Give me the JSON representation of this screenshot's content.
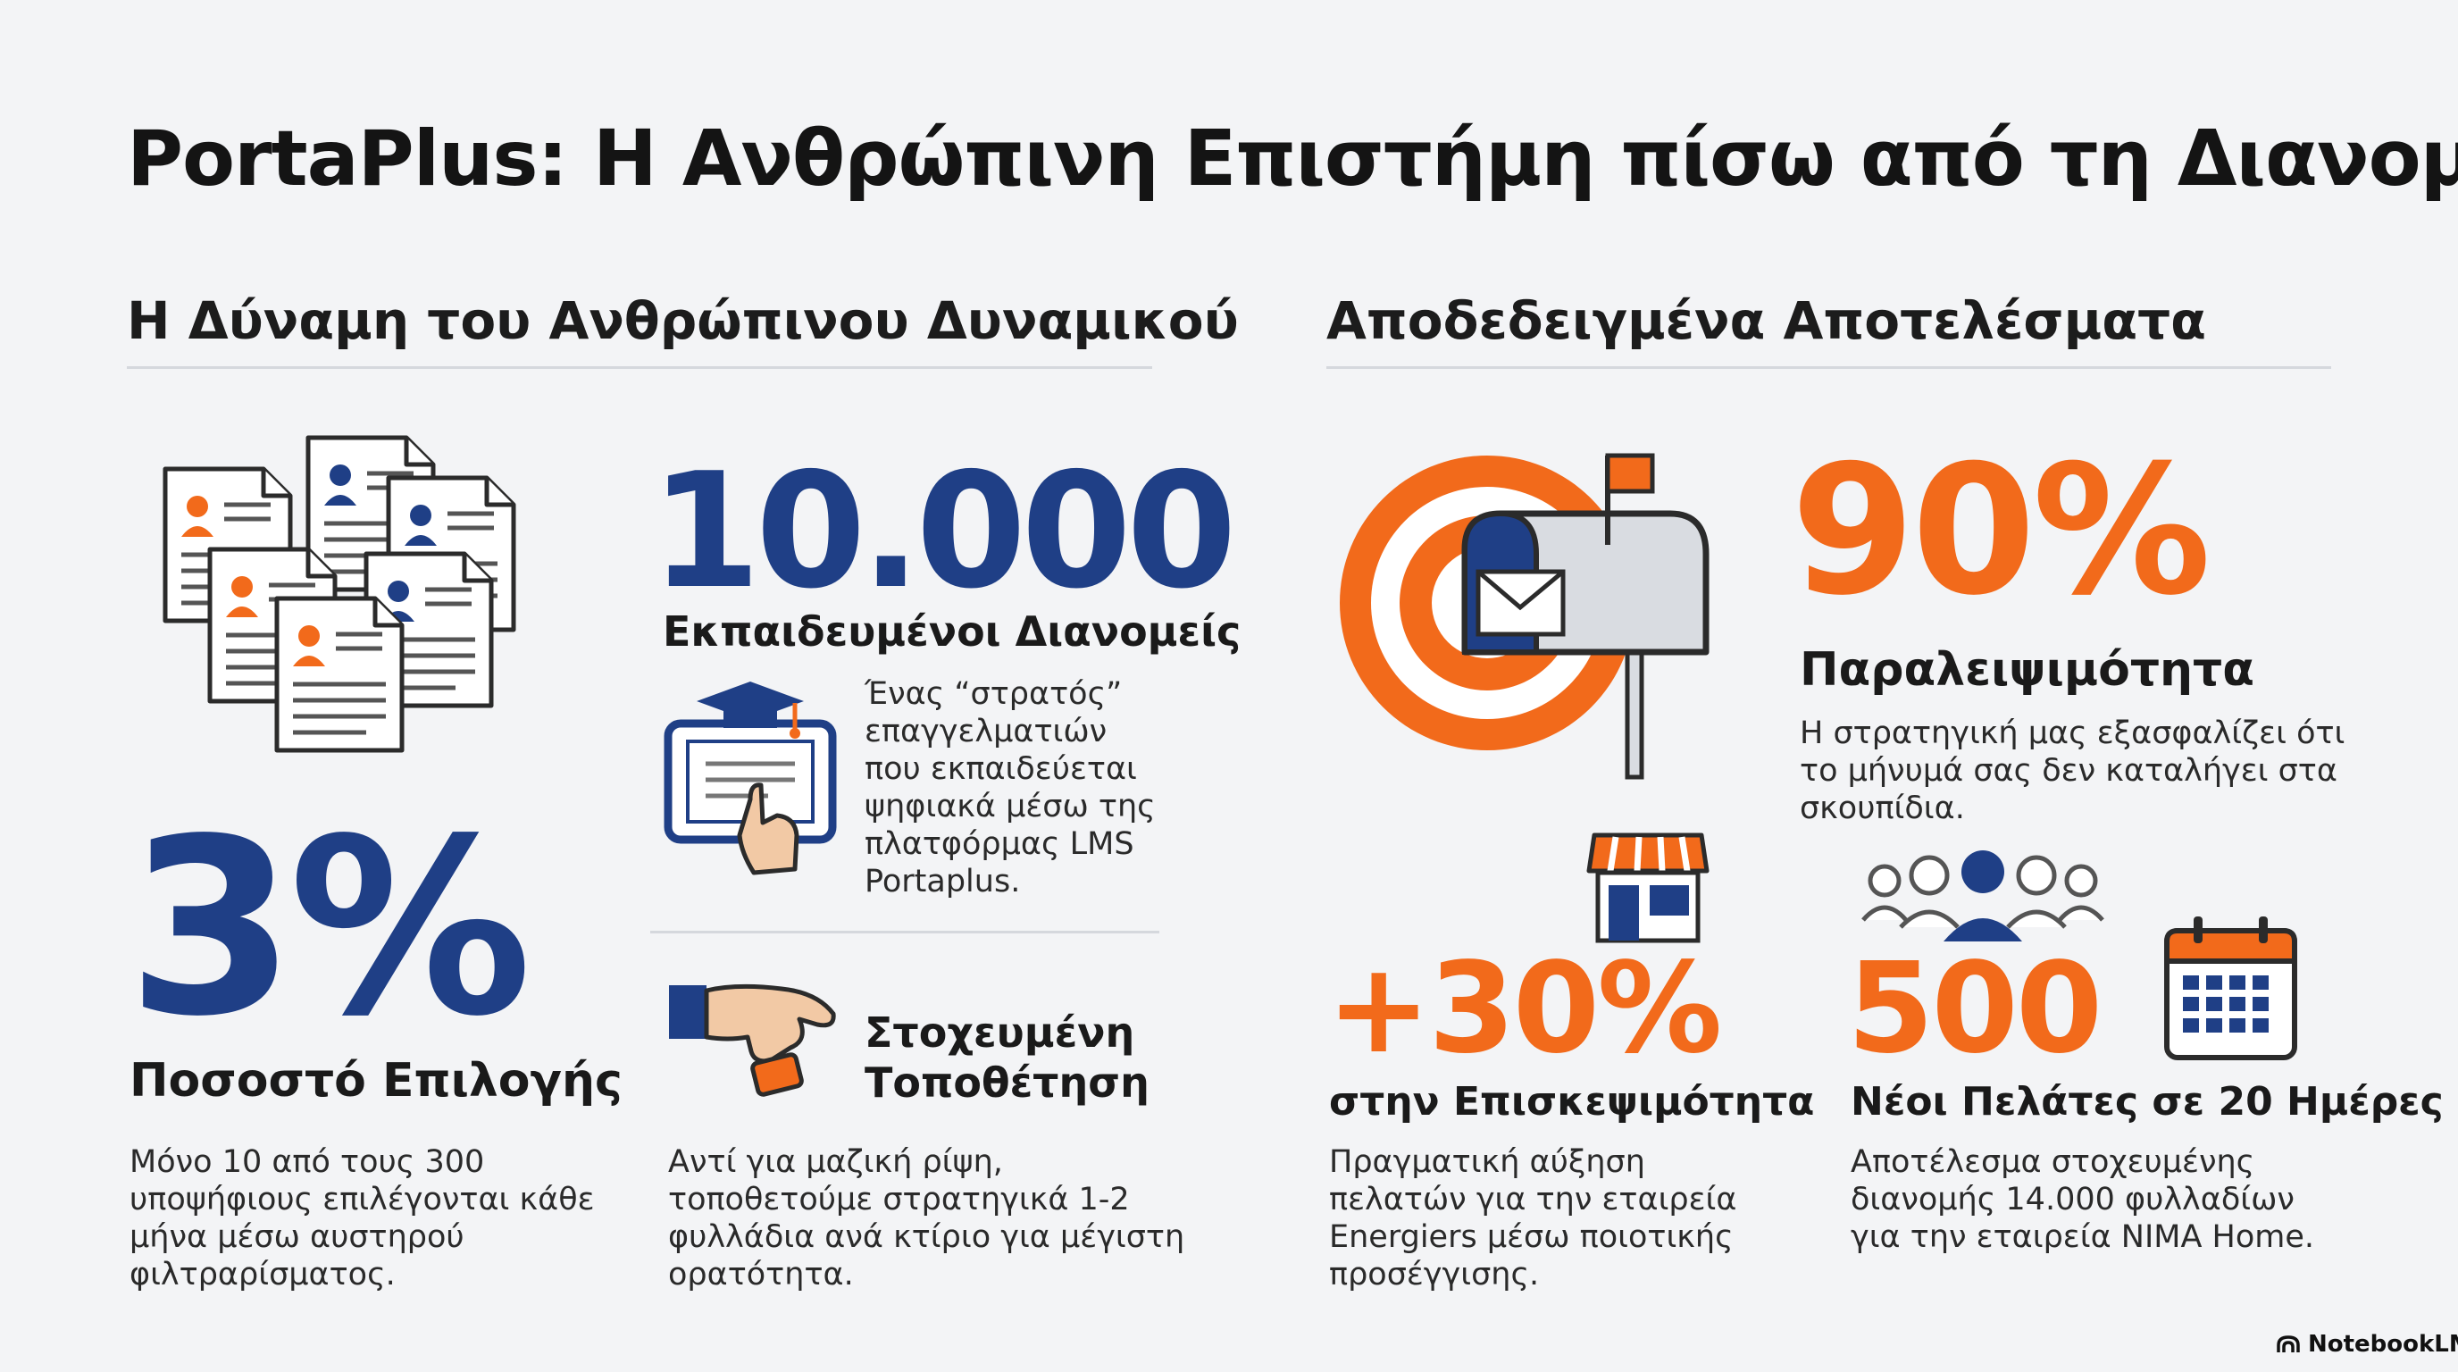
{
  "title": "PortaPlus: Η Ανθρώπινη Επιστήμη πίσω από τη Διανομή",
  "left_section": {
    "heading": "Η Δύναμη του Ανθρώπινου Δυναμικού",
    "couriers": {
      "value": "10.000",
      "label": "Εκπαιδευμένοι Διανομείς",
      "description": "Ένας “στρατός” επαγγελματιών που εκπαιδεύεται ψηφιακά μέσω της πλατφόρμας LMS Portaplus."
    },
    "selection": {
      "value": "3%",
      "label": "Ποσοστό Επιλογής",
      "description": "Μόνο 10 από τους 300 υποψήφιους επιλέγονται κάθε μήνα μέσω αυστηρού φιλτραρίσματος."
    },
    "placement": {
      "label": "Στοχευμένη Τοποθέτηση",
      "description": "Αντί για μαζική ρίψη, τοποθετούμε στρατηγικά 1-2 φυλλάδια ανά κτίριο για μέγιστη ορατότητα."
    }
  },
  "right_section": {
    "heading": "Αποδεδειγμένα Αποτελέσματα",
    "reach": {
      "value": "90%",
      "label": "Παραλειψιμότητα",
      "description": "Η στρατηγική μας εξασφαλίζει ότι το μήνυμά σας δεν καταλήγει στα σκουπίδια."
    },
    "visits": {
      "value": "+30%",
      "label": "στην Επισκεψιμότητα",
      "description": "Πραγματική αύξηση πελατών για την εταιρεία Energiers μέσω ποιοτικής προσέγγισης."
    },
    "clients": {
      "value": "500",
      "label": "Νέοι Πελάτες σε 20 Ημέρες",
      "description": "Αποτέλεσμα στοχευμένης διανομής 14.000 φυλλαδίων για την εταιρεία NIMA Home."
    }
  },
  "brand": "NotebookLM",
  "colors": {
    "navy": "#1f3f86",
    "orange": "#f26a1b",
    "background": "#f3f4f6"
  },
  "icons": [
    "resume-stack-icon",
    "elearning-tablet-icon",
    "hand-placing-icon",
    "target-mailbox-icon",
    "storefront-icon",
    "people-group-icon",
    "calendar-icon",
    "notebooklm-logo-icon"
  ]
}
